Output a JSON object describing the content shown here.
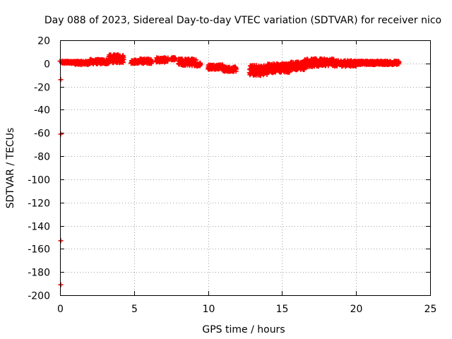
{
  "chart_data": {
    "type": "scatter",
    "title": "Day 088 of 2023, Sidereal Day-to-day VTEC variation (SDTVAR) for receiver nico",
    "xlabel": "GPS time / hours",
    "ylabel": "SDTVAR / TECUs",
    "xlim": [
      0,
      25
    ],
    "ylim": [
      -200,
      20
    ],
    "xticks": [
      0,
      5,
      10,
      15,
      20,
      25
    ],
    "yticks": [
      -200,
      -180,
      -160,
      -140,
      -120,
      -100,
      -80,
      -60,
      -40,
      -20,
      0,
      20
    ],
    "grid": true,
    "marker": "plus",
    "color": "#ff0000",
    "outliers": [
      {
        "x": 0.0,
        "y": 2
      },
      {
        "x": 0.05,
        "y": -14
      },
      {
        "x": 0.05,
        "y": -61
      },
      {
        "x": 0.05,
        "y": -153
      },
      {
        "x": 0.05,
        "y": -191
      }
    ],
    "series_segments": [
      {
        "x_start": 0.1,
        "x_end": 1.0,
        "y_center": 1,
        "y_spread": 1.0
      },
      {
        "x_start": 1.0,
        "x_end": 2.0,
        "y_center": 0.5,
        "y_spread": 1.5
      },
      {
        "x_start": 2.0,
        "x_end": 3.3,
        "y_center": 1.5,
        "y_spread": 2.0
      },
      {
        "x_start": 3.3,
        "x_end": 4.3,
        "y_center": 4,
        "y_spread": 3.5
      },
      {
        "x_start": 4.8,
        "x_end": 5.4,
        "y_center": 1.5,
        "y_spread": 1.5
      },
      {
        "x_start": 5.4,
        "x_end": 6.2,
        "y_center": 2,
        "y_spread": 2.0
      },
      {
        "x_start": 6.5,
        "x_end": 7.3,
        "y_center": 3,
        "y_spread": 2.0
      },
      {
        "x_start": 7.5,
        "x_end": 7.8,
        "y_center": 4,
        "y_spread": 1.0
      },
      {
        "x_start": 8.0,
        "x_end": 9.2,
        "y_center": 1,
        "y_spread": 3.0
      },
      {
        "x_start": 9.2,
        "x_end": 9.5,
        "y_center": -1,
        "y_spread": 1.5
      },
      {
        "x_start": 10.0,
        "x_end": 11.0,
        "y_center": -3,
        "y_spread": 2.0
      },
      {
        "x_start": 11.0,
        "x_end": 11.9,
        "y_center": -5,
        "y_spread": 2.0
      },
      {
        "x_start": 12.8,
        "x_end": 14.0,
        "y_center": -6,
        "y_spread": 4.5
      },
      {
        "x_start": 14.0,
        "x_end": 15.5,
        "y_center": -4,
        "y_spread": 4.0
      },
      {
        "x_start": 15.5,
        "x_end": 16.5,
        "y_center": -2,
        "y_spread": 3.5
      },
      {
        "x_start": 16.5,
        "x_end": 17.5,
        "y_center": 0.5,
        "y_spread": 3.5
      },
      {
        "x_start": 17.5,
        "x_end": 18.5,
        "y_center": 1,
        "y_spread": 3.0
      },
      {
        "x_start": 18.5,
        "x_end": 20.0,
        "y_center": 0,
        "y_spread": 2.5
      },
      {
        "x_start": 20.0,
        "x_end": 22.9,
        "y_center": 0.5,
        "y_spread": 1.5
      }
    ]
  }
}
